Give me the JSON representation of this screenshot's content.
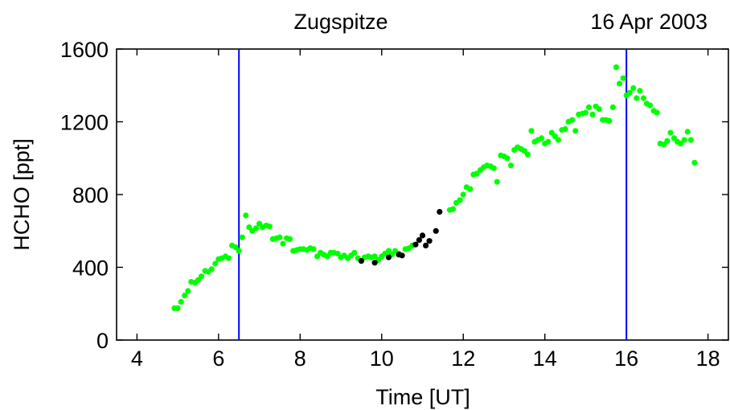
{
  "chart_data": {
    "type": "scatter",
    "title_left": "Zugspitze",
    "title_right": "16 Apr 2003",
    "xlabel": "Time [UT]",
    "ylabel": "HCHO [ppt]",
    "xlim": [
      3.5,
      18.5
    ],
    "ylim": [
      0,
      1600
    ],
    "xticks": [
      4,
      6,
      8,
      10,
      12,
      14,
      16,
      18
    ],
    "yticks": [
      0,
      400,
      800,
      1200,
      1600
    ],
    "vertical_lines": [
      6.5,
      16.0
    ],
    "colors": {
      "series_green": "#00ff00",
      "series_black": "#000000",
      "vlines": "#0000ff",
      "axes": "#000000"
    },
    "series": [
      {
        "color": "#00ff00",
        "points": [
          [
            4.92,
            175
          ],
          [
            5.0,
            175
          ],
          [
            5.08,
            210
          ],
          [
            5.17,
            245
          ],
          [
            5.25,
            270
          ],
          [
            5.33,
            320
          ],
          [
            5.42,
            315
          ],
          [
            5.5,
            330
          ],
          [
            5.58,
            350
          ],
          [
            5.67,
            380
          ],
          [
            5.75,
            375
          ],
          [
            5.83,
            390
          ],
          [
            5.92,
            420
          ],
          [
            6.0,
            445
          ],
          [
            6.08,
            450
          ],
          [
            6.17,
            460
          ],
          [
            6.25,
            450
          ],
          [
            6.33,
            520
          ],
          [
            6.42,
            510
          ],
          [
            6.5,
            490
          ],
          [
            6.58,
            565
          ],
          [
            6.67,
            685
          ],
          [
            6.75,
            620
          ],
          [
            6.83,
            600
          ],
          [
            6.92,
            615
          ],
          [
            7.0,
            640
          ],
          [
            7.08,
            620
          ],
          [
            7.17,
            630
          ],
          [
            7.25,
            625
          ],
          [
            7.33,
            555
          ],
          [
            7.42,
            560
          ],
          [
            7.5,
            565
          ],
          [
            7.58,
            530
          ],
          [
            7.67,
            560
          ],
          [
            7.75,
            555
          ],
          [
            7.83,
            490
          ],
          [
            7.92,
            495
          ],
          [
            8.0,
            500
          ],
          [
            8.08,
            500
          ],
          [
            8.17,
            495
          ],
          [
            8.25,
            505
          ],
          [
            8.33,
            500
          ],
          [
            8.42,
            460
          ],
          [
            8.5,
            480
          ],
          [
            8.58,
            470
          ],
          [
            8.67,
            460
          ],
          [
            8.75,
            480
          ],
          [
            8.83,
            480
          ],
          [
            8.92,
            475
          ],
          [
            9.0,
            455
          ],
          [
            9.08,
            465
          ],
          [
            9.17,
            450
          ],
          [
            9.25,
            465
          ],
          [
            9.33,
            480
          ],
          [
            9.42,
            450
          ],
          [
            9.58,
            455
          ],
          [
            9.67,
            460
          ],
          [
            9.75,
            455
          ],
          [
            9.83,
            460
          ],
          [
            9.92,
            440
          ],
          [
            10.0,
            460
          ],
          [
            10.08,
            475
          ],
          [
            10.17,
            490
          ],
          [
            10.25,
            470
          ],
          [
            10.33,
            490
          ],
          [
            10.42,
            475
          ],
          [
            10.58,
            500
          ],
          [
            10.67,
            505
          ],
          [
            10.75,
            520
          ],
          [
            11.67,
            715
          ],
          [
            11.75,
            720
          ],
          [
            11.83,
            755
          ],
          [
            11.92,
            770
          ],
          [
            12.0,
            800
          ],
          [
            12.08,
            840
          ],
          [
            12.17,
            830
          ],
          [
            12.25,
            910
          ],
          [
            12.33,
            915
          ],
          [
            12.42,
            935
          ],
          [
            12.5,
            950
          ],
          [
            12.58,
            960
          ],
          [
            12.67,
            955
          ],
          [
            12.75,
            945
          ],
          [
            12.83,
            870
          ],
          [
            12.92,
            1015
          ],
          [
            13.0,
            1010
          ],
          [
            13.08,
            1000
          ],
          [
            13.17,
            960
          ],
          [
            13.25,
            1045
          ],
          [
            13.33,
            1060
          ],
          [
            13.42,
            1050
          ],
          [
            13.5,
            1040
          ],
          [
            13.58,
            1020
          ],
          [
            13.67,
            1150
          ],
          [
            13.75,
            1090
          ],
          [
            13.83,
            1100
          ],
          [
            13.92,
            1110
          ],
          [
            14.0,
            1080
          ],
          [
            14.08,
            1090
          ],
          [
            14.17,
            1140
          ],
          [
            14.25,
            1120
          ],
          [
            14.33,
            1100
          ],
          [
            14.42,
            1155
          ],
          [
            14.5,
            1160
          ],
          [
            14.58,
            1200
          ],
          [
            14.67,
            1210
          ],
          [
            14.75,
            1150
          ],
          [
            14.83,
            1240
          ],
          [
            14.92,
            1245
          ],
          [
            15.0,
            1250
          ],
          [
            15.08,
            1280
          ],
          [
            15.17,
            1240
          ],
          [
            15.25,
            1285
          ],
          [
            15.33,
            1270
          ],
          [
            15.42,
            1210
          ],
          [
            15.5,
            1210
          ],
          [
            15.58,
            1205
          ],
          [
            15.67,
            1280
          ],
          [
            15.75,
            1500
          ],
          [
            15.83,
            1410
          ],
          [
            15.92,
            1440
          ],
          [
            16.0,
            1345
          ],
          [
            16.08,
            1360
          ],
          [
            16.17,
            1385
          ],
          [
            16.25,
            1330
          ],
          [
            16.33,
            1370
          ],
          [
            16.42,
            1330
          ],
          [
            16.5,
            1300
          ],
          [
            16.58,
            1290
          ],
          [
            16.67,
            1260
          ],
          [
            16.75,
            1250
          ],
          [
            16.83,
            1080
          ],
          [
            16.92,
            1075
          ],
          [
            17.0,
            1095
          ],
          [
            17.08,
            1140
          ],
          [
            17.17,
            1110
          ],
          [
            17.25,
            1090
          ],
          [
            17.33,
            1080
          ],
          [
            17.42,
            1100
          ],
          [
            17.5,
            1145
          ],
          [
            17.58,
            1100
          ],
          [
            17.67,
            975
          ]
        ]
      },
      {
        "color": "#000000",
        "points": [
          [
            9.5,
            435
          ],
          [
            9.83,
            425
          ],
          [
            10.17,
            455
          ],
          [
            10.42,
            470
          ],
          [
            10.5,
            465
          ],
          [
            10.83,
            525
          ],
          [
            10.92,
            550
          ],
          [
            11.0,
            575
          ],
          [
            11.08,
            520
          ],
          [
            11.17,
            545
          ],
          [
            11.33,
            600
          ],
          [
            11.42,
            705
          ]
        ]
      }
    ]
  }
}
